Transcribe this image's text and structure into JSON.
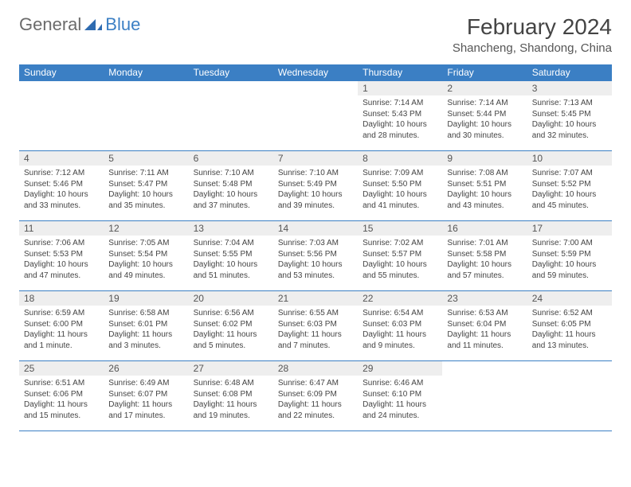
{
  "logo": {
    "part1": "General",
    "part2": "Blue"
  },
  "title": "February 2024",
  "location": "Shancheng, Shandong, China",
  "style": {
    "accent": "#3b7fc4",
    "header_text": "#ffffff",
    "daynum_bg": "#eeeeee",
    "body_text": "#444444",
    "title_color": "#444444",
    "logo_gray": "#6b6b6b",
    "font_family": "Arial",
    "title_fontsize": 28,
    "location_fontsize": 15,
    "dayheader_fontsize": 12,
    "cell_fontsize": 10
  },
  "dayHeaders": [
    "Sunday",
    "Monday",
    "Tuesday",
    "Wednesday",
    "Thursday",
    "Friday",
    "Saturday"
  ],
  "weeks": [
    [
      null,
      null,
      null,
      null,
      {
        "n": "1",
        "sr": "7:14 AM",
        "ss": "5:43 PM",
        "dl": "10 hours and 28 minutes."
      },
      {
        "n": "2",
        "sr": "7:14 AM",
        "ss": "5:44 PM",
        "dl": "10 hours and 30 minutes."
      },
      {
        "n": "3",
        "sr": "7:13 AM",
        "ss": "5:45 PM",
        "dl": "10 hours and 32 minutes."
      }
    ],
    [
      {
        "n": "4",
        "sr": "7:12 AM",
        "ss": "5:46 PM",
        "dl": "10 hours and 33 minutes."
      },
      {
        "n": "5",
        "sr": "7:11 AM",
        "ss": "5:47 PM",
        "dl": "10 hours and 35 minutes."
      },
      {
        "n": "6",
        "sr": "7:10 AM",
        "ss": "5:48 PM",
        "dl": "10 hours and 37 minutes."
      },
      {
        "n": "7",
        "sr": "7:10 AM",
        "ss": "5:49 PM",
        "dl": "10 hours and 39 minutes."
      },
      {
        "n": "8",
        "sr": "7:09 AM",
        "ss": "5:50 PM",
        "dl": "10 hours and 41 minutes."
      },
      {
        "n": "9",
        "sr": "7:08 AM",
        "ss": "5:51 PM",
        "dl": "10 hours and 43 minutes."
      },
      {
        "n": "10",
        "sr": "7:07 AM",
        "ss": "5:52 PM",
        "dl": "10 hours and 45 minutes."
      }
    ],
    [
      {
        "n": "11",
        "sr": "7:06 AM",
        "ss": "5:53 PM",
        "dl": "10 hours and 47 minutes."
      },
      {
        "n": "12",
        "sr": "7:05 AM",
        "ss": "5:54 PM",
        "dl": "10 hours and 49 minutes."
      },
      {
        "n": "13",
        "sr": "7:04 AM",
        "ss": "5:55 PM",
        "dl": "10 hours and 51 minutes."
      },
      {
        "n": "14",
        "sr": "7:03 AM",
        "ss": "5:56 PM",
        "dl": "10 hours and 53 minutes."
      },
      {
        "n": "15",
        "sr": "7:02 AM",
        "ss": "5:57 PM",
        "dl": "10 hours and 55 minutes."
      },
      {
        "n": "16",
        "sr": "7:01 AM",
        "ss": "5:58 PM",
        "dl": "10 hours and 57 minutes."
      },
      {
        "n": "17",
        "sr": "7:00 AM",
        "ss": "5:59 PM",
        "dl": "10 hours and 59 minutes."
      }
    ],
    [
      {
        "n": "18",
        "sr": "6:59 AM",
        "ss": "6:00 PM",
        "dl": "11 hours and 1 minute."
      },
      {
        "n": "19",
        "sr": "6:58 AM",
        "ss": "6:01 PM",
        "dl": "11 hours and 3 minutes."
      },
      {
        "n": "20",
        "sr": "6:56 AM",
        "ss": "6:02 PM",
        "dl": "11 hours and 5 minutes."
      },
      {
        "n": "21",
        "sr": "6:55 AM",
        "ss": "6:03 PM",
        "dl": "11 hours and 7 minutes."
      },
      {
        "n": "22",
        "sr": "6:54 AM",
        "ss": "6:03 PM",
        "dl": "11 hours and 9 minutes."
      },
      {
        "n": "23",
        "sr": "6:53 AM",
        "ss": "6:04 PM",
        "dl": "11 hours and 11 minutes."
      },
      {
        "n": "24",
        "sr": "6:52 AM",
        "ss": "6:05 PM",
        "dl": "11 hours and 13 minutes."
      }
    ],
    [
      {
        "n": "25",
        "sr": "6:51 AM",
        "ss": "6:06 PM",
        "dl": "11 hours and 15 minutes."
      },
      {
        "n": "26",
        "sr": "6:49 AM",
        "ss": "6:07 PM",
        "dl": "11 hours and 17 minutes."
      },
      {
        "n": "27",
        "sr": "6:48 AM",
        "ss": "6:08 PM",
        "dl": "11 hours and 19 minutes."
      },
      {
        "n": "28",
        "sr": "6:47 AM",
        "ss": "6:09 PM",
        "dl": "11 hours and 22 minutes."
      },
      {
        "n": "29",
        "sr": "6:46 AM",
        "ss": "6:10 PM",
        "dl": "11 hours and 24 minutes."
      },
      null,
      null
    ]
  ],
  "labels": {
    "sunrise": "Sunrise:",
    "sunset": "Sunset:",
    "daylight": "Daylight:"
  }
}
